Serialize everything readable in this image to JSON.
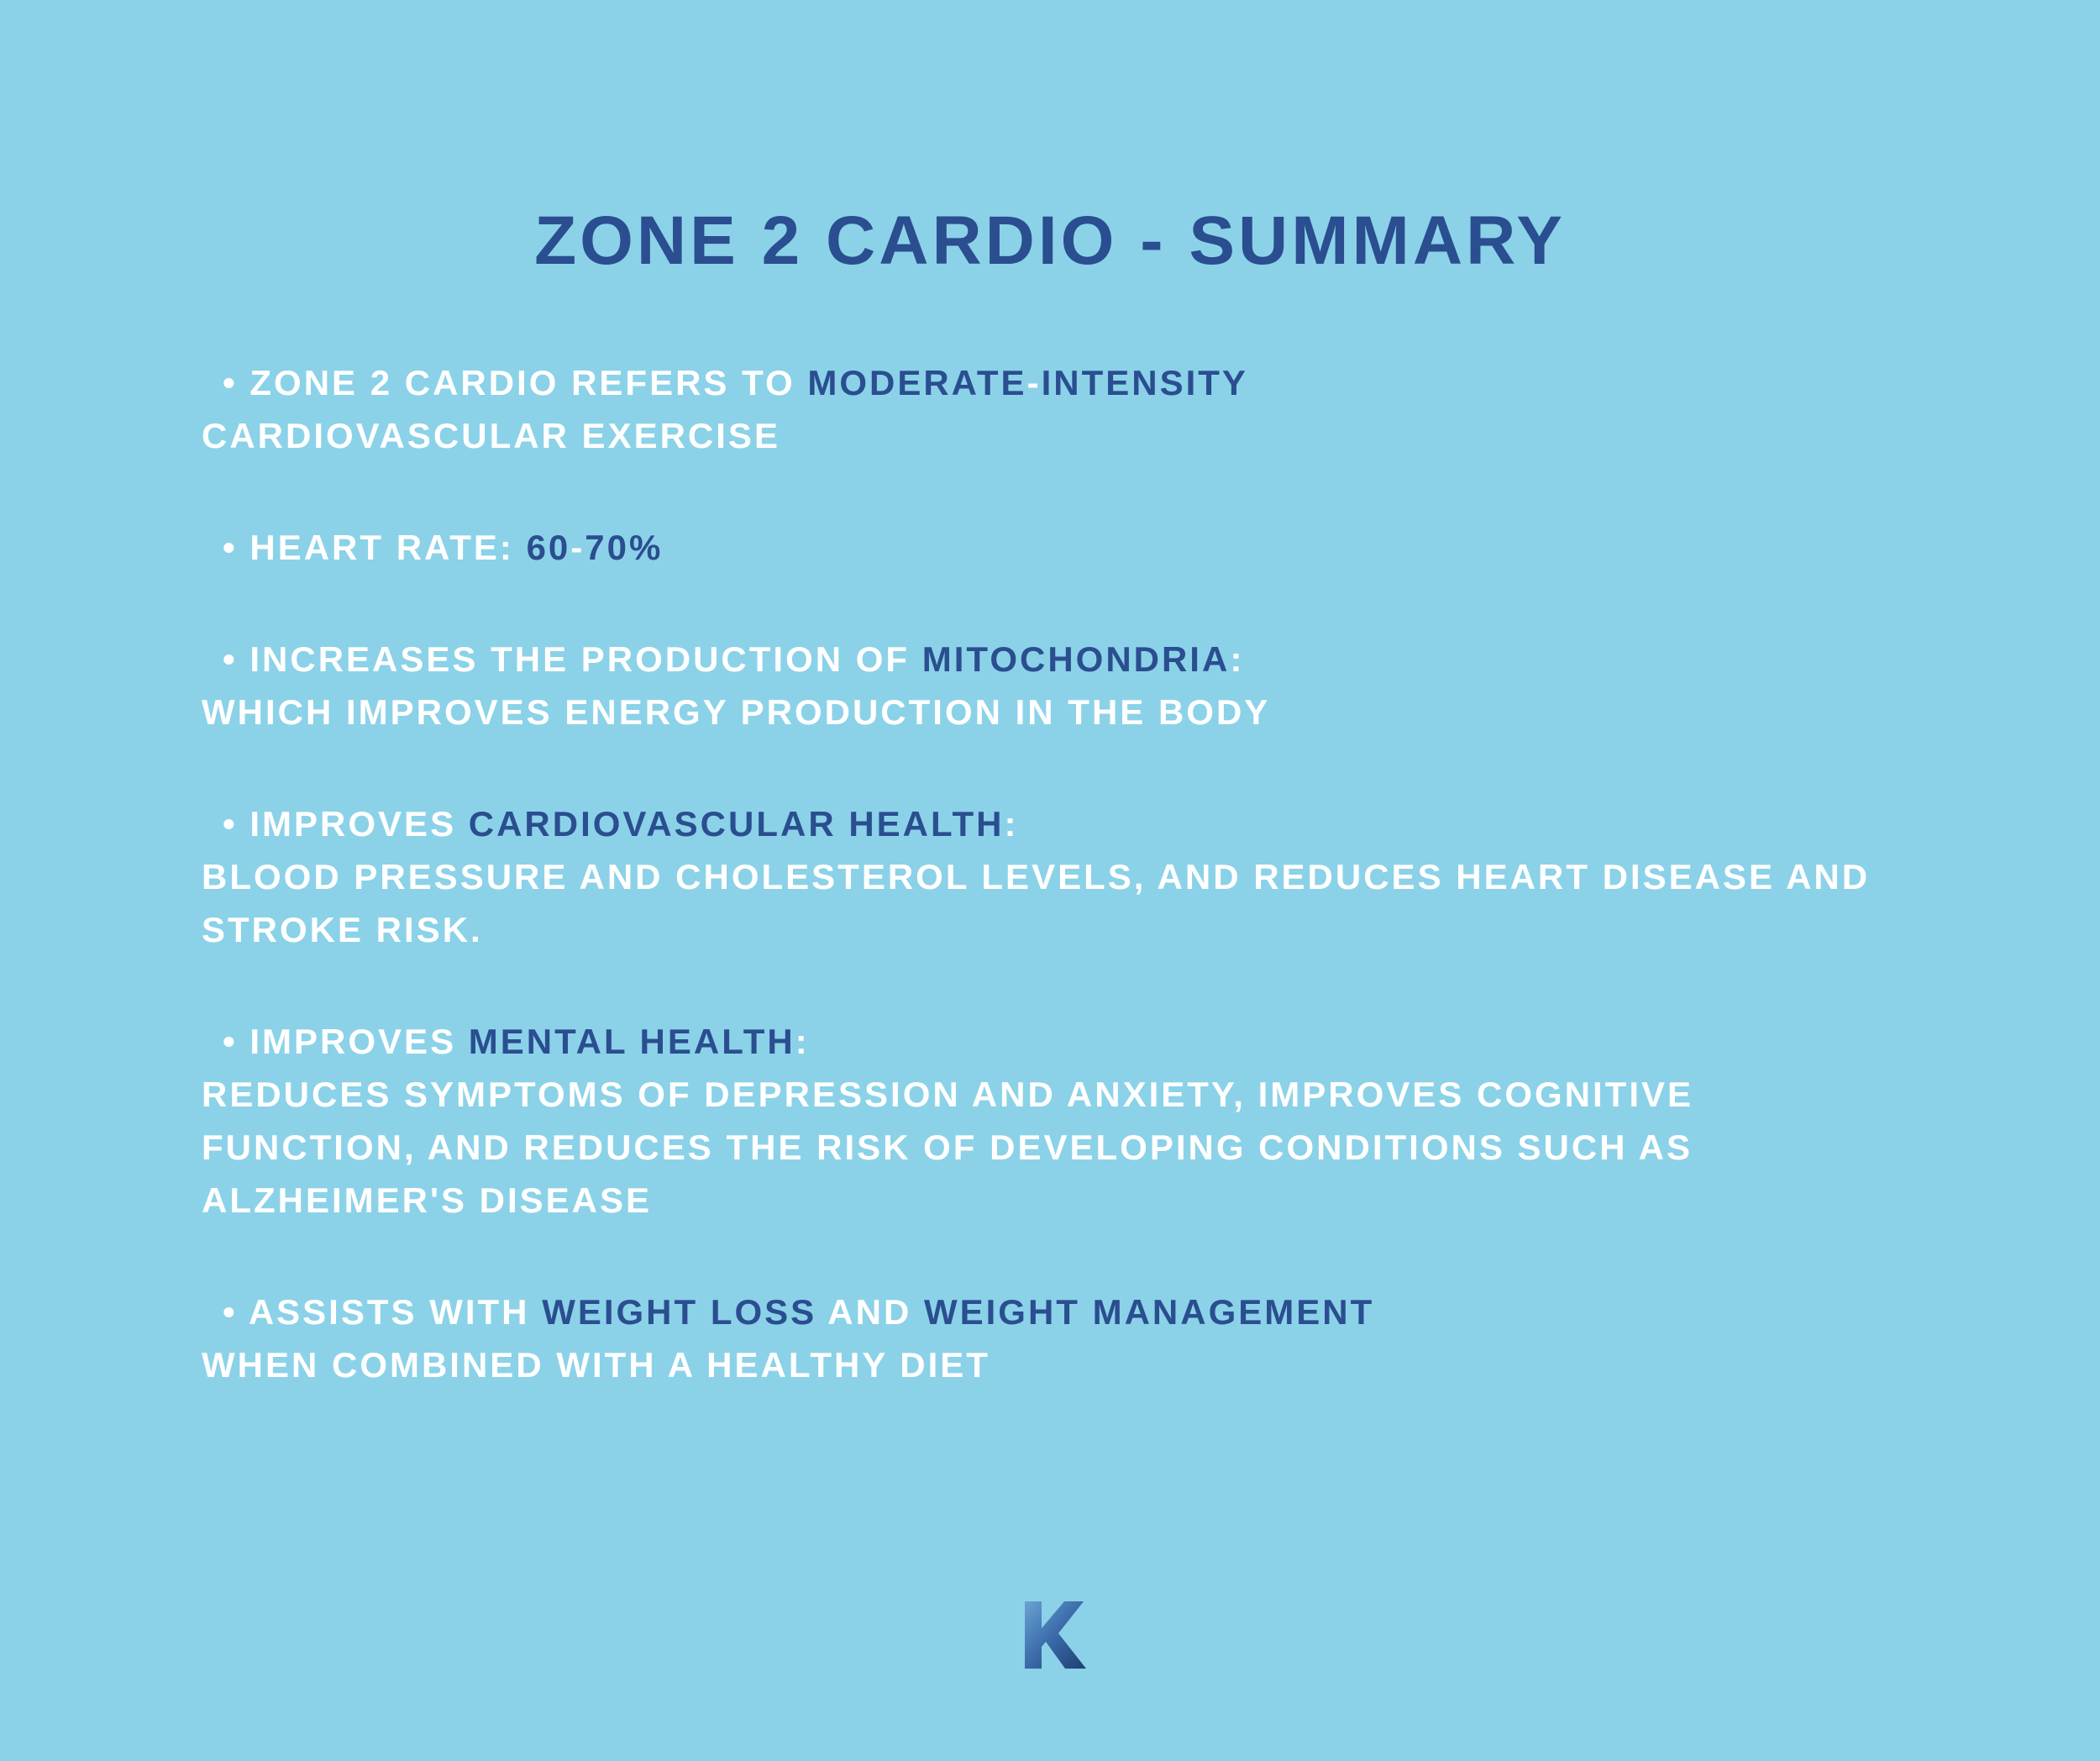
{
  "title": "ZONE 2 CARDIO - SUMMARY",
  "colors": {
    "background": "#8bd2e8",
    "title": "#2a4e8f",
    "white_text": "#ffffff",
    "accent_text": "#2a4e8f"
  },
  "typography": {
    "title_fontsize": 82,
    "body_fontsize": 42,
    "font_weight": 900,
    "letter_spacing": 4
  },
  "bullets": [
    {
      "parts": [
        {
          "text": "ZONE 2 CARDIO REFERS TO ",
          "color": "white"
        },
        {
          "text": "MODERATE",
          "color": "blue"
        },
        {
          "text": "-",
          "color": "white"
        },
        {
          "text": "INTENSITY",
          "color": "blue"
        }
      ],
      "continuation": [
        {
          "text": "CARDIOVASCULAR EXERCISE",
          "color": "white"
        }
      ]
    },
    {
      "parts": [
        {
          "text": "HEART RATE: ",
          "color": "white"
        },
        {
          "text": "60",
          "color": "blue"
        },
        {
          "text": "-",
          "color": "white"
        },
        {
          "text": "70%",
          "color": "blue"
        }
      ]
    },
    {
      "parts": [
        {
          "text": "INCREASES THE PRODUCTION OF ",
          "color": "white"
        },
        {
          "text": "MITOCHONDRIA",
          "color": "blue"
        },
        {
          "text": ":",
          "color": "white"
        }
      ],
      "continuation": [
        {
          "text": "WHICH IMPROVES ENERGY PRODUCTION IN THE BODY",
          "color": "white"
        }
      ]
    },
    {
      "parts": [
        {
          "text": "IMPROVES ",
          "color": "white"
        },
        {
          "text": "CARDIOVASCULAR HEALTH",
          "color": "blue"
        },
        {
          "text": ":",
          "color": "white"
        }
      ],
      "continuation": [
        {
          "text": "BLOOD PRESSURE AND CHOLESTEROL LEVELS, AND REDUCES HEART DISEASE AND STROKE RISK.",
          "color": "white"
        }
      ]
    },
    {
      "parts": [
        {
          "text": "IMPROVES ",
          "color": "white"
        },
        {
          "text": "MENTAL HEALTH",
          "color": "blue"
        },
        {
          "text": ":",
          "color": "white"
        }
      ],
      "continuation": [
        {
          "text": "REDUCES SYMPTOMS OF DEPRESSION AND ANXIETY, IMPROVES COGNITIVE FUNCTION, AND REDUCES THE RISK OF DEVELOPING CONDITIONS SUCH AS ALZHEIMER'S DISEASE",
          "color": "white"
        }
      ]
    },
    {
      "parts": [
        {
          "text": "ASSISTS WITH ",
          "color": "white"
        },
        {
          "text": "WEIGHT LOSS",
          "color": "blue"
        },
        {
          "text": " AND ",
          "color": "white"
        },
        {
          "text": "WEIGHT MANAGEMENT",
          "color": "blue"
        }
      ],
      "continuation": [
        {
          "text": "WHEN COMBINED WITH A HEALTHY DIET",
          "color": "white"
        }
      ]
    }
  ],
  "logo": {
    "type": "K-letter",
    "gradient_colors": [
      "#4a7fb5",
      "#2a5a9a",
      "#1d4070"
    ]
  }
}
